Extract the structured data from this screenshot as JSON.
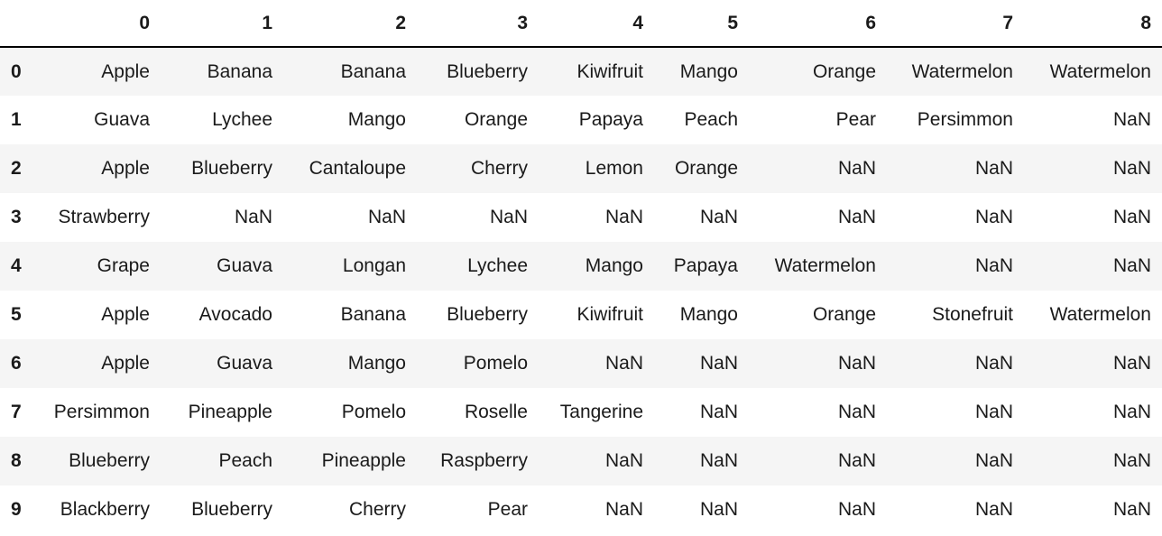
{
  "table": {
    "columns": [
      "0",
      "1",
      "2",
      "3",
      "4",
      "5",
      "6",
      "7",
      "8"
    ],
    "rows": [
      {
        "index": "0",
        "cells": [
          "Apple",
          "Banana",
          "Banana",
          "Blueberry",
          "Kiwifruit",
          "Mango",
          "Orange",
          "Watermelon",
          "Watermelon"
        ]
      },
      {
        "index": "1",
        "cells": [
          "Guava",
          "Lychee",
          "Mango",
          "Orange",
          "Papaya",
          "Peach",
          "Pear",
          "Persimmon",
          "NaN"
        ]
      },
      {
        "index": "2",
        "cells": [
          "Apple",
          "Blueberry",
          "Cantaloupe",
          "Cherry",
          "Lemon",
          "Orange",
          "NaN",
          "NaN",
          "NaN"
        ]
      },
      {
        "index": "3",
        "cells": [
          "Strawberry",
          "NaN",
          "NaN",
          "NaN",
          "NaN",
          "NaN",
          "NaN",
          "NaN",
          "NaN"
        ]
      },
      {
        "index": "4",
        "cells": [
          "Grape",
          "Guava",
          "Longan",
          "Lychee",
          "Mango",
          "Papaya",
          "Watermelon",
          "NaN",
          "NaN"
        ]
      },
      {
        "index": "5",
        "cells": [
          "Apple",
          "Avocado",
          "Banana",
          "Blueberry",
          "Kiwifruit",
          "Mango",
          "Orange",
          "Stonefruit",
          "Watermelon"
        ]
      },
      {
        "index": "6",
        "cells": [
          "Apple",
          "Guava",
          "Mango",
          "Pomelo",
          "NaN",
          "NaN",
          "NaN",
          "NaN",
          "NaN"
        ]
      },
      {
        "index": "7",
        "cells": [
          "Persimmon",
          "Pineapple",
          "Pomelo",
          "Roselle",
          "Tangerine",
          "NaN",
          "NaN",
          "NaN",
          "NaN"
        ]
      },
      {
        "index": "8",
        "cells": [
          "Blueberry",
          "Peach",
          "Pineapple",
          "Raspberry",
          "NaN",
          "NaN",
          "NaN",
          "NaN",
          "NaN"
        ]
      },
      {
        "index": "9",
        "cells": [
          "Blackberry",
          "Blueberry",
          "Cherry",
          "Pear",
          "NaN",
          "NaN",
          "NaN",
          "NaN",
          "NaN"
        ]
      }
    ]
  },
  "colors": {
    "stripe": "#f5f5f5",
    "header_rule": "#000000",
    "text": "#1a1a1a"
  }
}
